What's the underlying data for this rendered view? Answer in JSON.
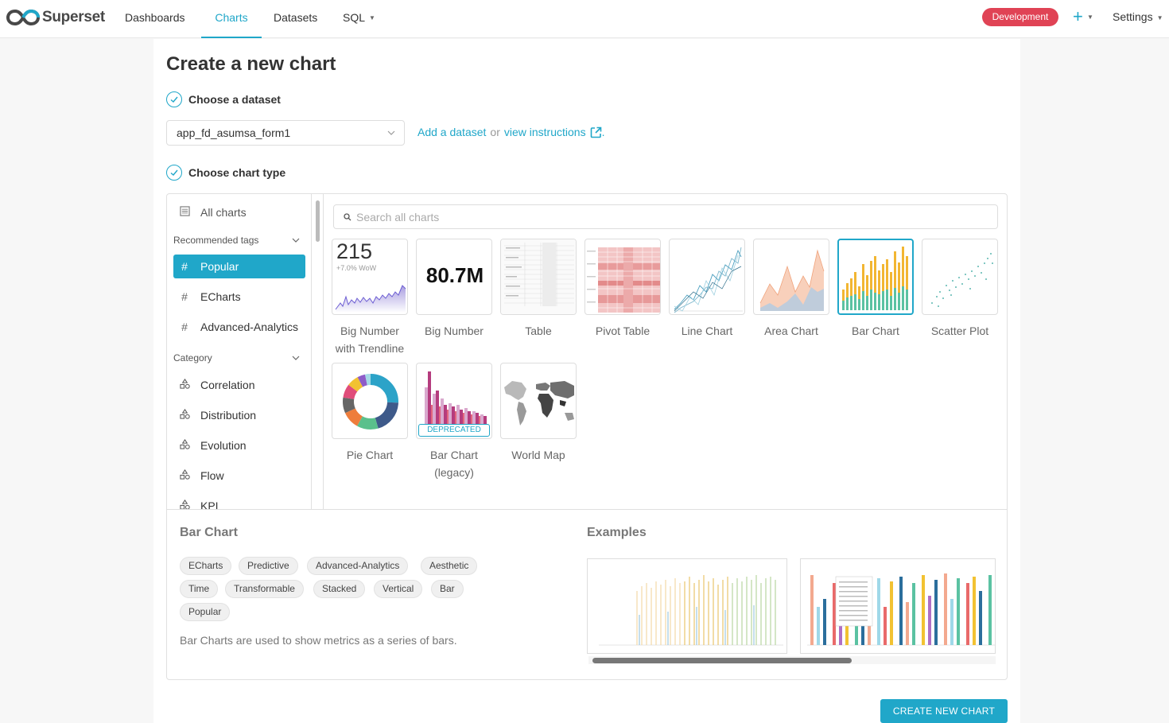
{
  "app": {
    "name": "Superset"
  },
  "nav": {
    "items": [
      {
        "label": "Dashboards"
      },
      {
        "label": "Charts",
        "active": true
      },
      {
        "label": "Datasets"
      },
      {
        "label": "SQL"
      }
    ],
    "environment": "Development",
    "settings": "Settings"
  },
  "page": {
    "title": "Create a new chart",
    "step1": "Choose a dataset",
    "step2": "Choose chart type",
    "dataset_value": "app_fd_asumsa_form1",
    "add_dataset": "Add a dataset",
    "or_text": "or",
    "view_instructions": "view instructions",
    "period": "."
  },
  "sidebar": {
    "all_charts": "All charts",
    "recommended_heading": "Recommended tags",
    "tags": [
      "Popular",
      "ECharts",
      "Advanced-Analytics"
    ],
    "category_heading": "Category",
    "categories": [
      "Correlation",
      "Distribution",
      "Evolution",
      "Flow",
      "KPI"
    ]
  },
  "search": {
    "placeholder": "Search all charts"
  },
  "charts": [
    {
      "label": "Big Number with Trendline",
      "big": "215",
      "sub": "+7.0% WoW"
    },
    {
      "label": "Big Number",
      "big": "80.7M"
    },
    {
      "label": "Table"
    },
    {
      "label": "Pivot Table"
    },
    {
      "label": "Line Chart"
    },
    {
      "label": "Area Chart"
    },
    {
      "label": "Bar Chart",
      "selected": true
    },
    {
      "label": "Scatter Plot"
    },
    {
      "label": "Pie Chart"
    },
    {
      "label": "Bar Chart (legacy)",
      "badge": "DEPRECATED"
    },
    {
      "label": "World Map"
    }
  ],
  "detail": {
    "title": "Bar Chart",
    "tags": [
      "ECharts",
      "Predictive",
      "Advanced-Analytics",
      "Aesthetic",
      "Time",
      "Transformable",
      "Stacked",
      "Vertical",
      "Bar",
      "Popular"
    ],
    "description": "Bar Charts are used to show metrics as a series of bars.",
    "examples_title": "Examples"
  },
  "create_button": "CREATE NEW CHART",
  "colors": {
    "accent": "#20a7c9",
    "env_badge": "#e04355"
  }
}
